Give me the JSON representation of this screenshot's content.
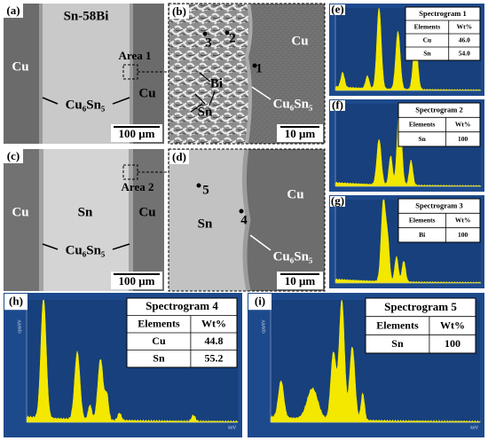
{
  "panels": [
    {
      "label": "(a)",
      "texts": [
        "Cu",
        "Sn-58Bi",
        "Area 1",
        "Cu",
        "Cu₆Sn₅",
        "100 μm"
      ]
    },
    {
      "label": "(b)",
      "texts": [
        "3",
        "2",
        "1",
        "Bi",
        "Sn",
        "Cu",
        "Cu₆Sn₅",
        "10 μm"
      ]
    },
    {
      "label": "(c)",
      "texts": [
        "Cu",
        "Sn",
        "Area 2",
        "Cu",
        "Cu₆Sn₅",
        "100 μm"
      ]
    },
    {
      "label": "(d)",
      "texts": [
        "5",
        "4",
        "Sn",
        "Cu",
        "Cu₆Sn₅",
        "10 μm"
      ]
    }
  ],
  "spectra": [
    {
      "label": "(e)",
      "title": "Spectrogram 1",
      "header": [
        "Elements",
        "Wt%"
      ],
      "rows": [
        [
          "Cu",
          "46.0"
        ],
        [
          "Sn",
          "54.0"
        ]
      ]
    },
    {
      "label": "(f)",
      "title": "Spectrogram 2",
      "header": [
        "Elements",
        "Wt%"
      ],
      "rows": [
        [
          "Sn",
          "100"
        ]
      ]
    },
    {
      "label": "(g)",
      "title": "Spectrogram 3",
      "header": [
        "Elements",
        "Wt%"
      ],
      "rows": [
        [
          "Bi",
          "100"
        ]
      ]
    },
    {
      "label": "(h)",
      "title": "Spectrogram 4",
      "header": [
        "Elements",
        "Wt%"
      ],
      "rows": [
        [
          "Cu",
          "44.8"
        ],
        [
          "Sn",
          "55.2"
        ]
      ],
      "x_unit": "keV",
      "y_unit": "cps/eV"
    },
    {
      "label": "(i)",
      "title": "Spectrogram 5",
      "header": [
        "Elements",
        "Wt%"
      ],
      "rows": [
        [
          "Sn",
          "100"
        ]
      ],
      "x_unit": "keV",
      "y_unit": "cps/eV"
    }
  ]
}
